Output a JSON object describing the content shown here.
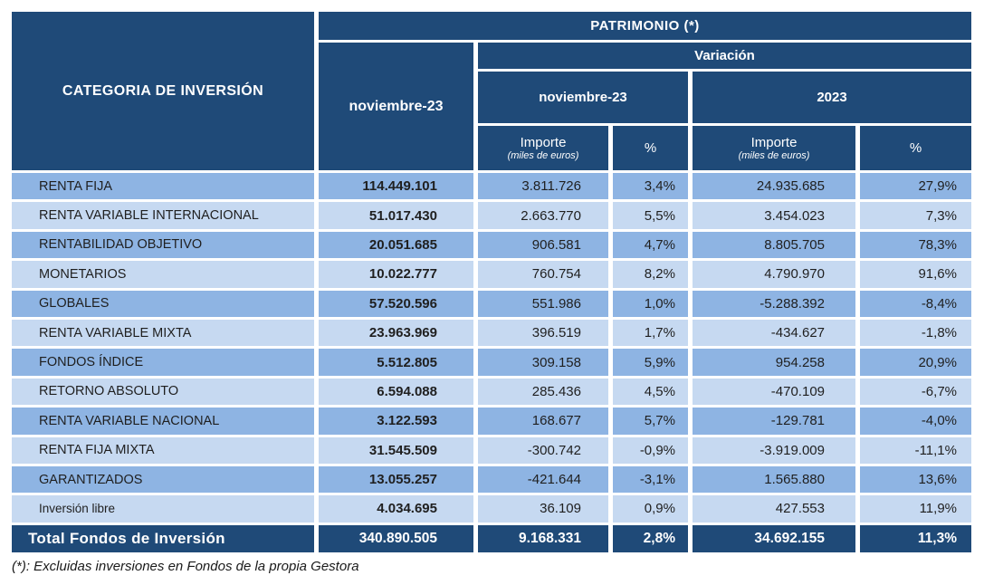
{
  "colors": {
    "header_navy": "#1F4A78",
    "row_medium_blue": "#8EB4E3",
    "row_light_blue": "#C6D9F1",
    "grid_line": "#FFFFFF",
    "text_dark": "#1F1F1F",
    "text_white": "#FFFFFF"
  },
  "table": {
    "header": {
      "category": "CATEGORIA DE INVERSIÓN",
      "patrimonio": "PATRIMONIO (*)",
      "nov23_main": "noviembre-23",
      "variacion": "Variación",
      "nov23_sub": "noviembre-23",
      "year2023": "2023",
      "importe": "Importe",
      "importe_unit": "(miles de euros)",
      "pct": "%"
    },
    "rows": [
      {
        "category": "RENTA FIJA",
        "patrimonio": "114.449.101",
        "var_nov_importe": "3.811.726",
        "var_nov_pct": "3,4%",
        "var_2023_importe": "24.935.685",
        "var_2023_pct": "27,9%"
      },
      {
        "category": "RENTA VARIABLE INTERNACIONAL",
        "patrimonio": "51.017.430",
        "var_nov_importe": "2.663.770",
        "var_nov_pct": "5,5%",
        "var_2023_importe": "3.454.023",
        "var_2023_pct": "7,3%"
      },
      {
        "category": "RENTABILIDAD OBJETIVO",
        "patrimonio": "20.051.685",
        "var_nov_importe": "906.581",
        "var_nov_pct": "4,7%",
        "var_2023_importe": "8.805.705",
        "var_2023_pct": "78,3%"
      },
      {
        "category": "MONETARIOS",
        "patrimonio": "10.022.777",
        "var_nov_importe": "760.754",
        "var_nov_pct": "8,2%",
        "var_2023_importe": "4.790.970",
        "var_2023_pct": "91,6%"
      },
      {
        "category": "GLOBALES",
        "patrimonio": "57.520.596",
        "var_nov_importe": "551.986",
        "var_nov_pct": "1,0%",
        "var_2023_importe": "-5.288.392",
        "var_2023_pct": "-8,4%"
      },
      {
        "category": "RENTA VARIABLE MIXTA",
        "patrimonio": "23.963.969",
        "var_nov_importe": "396.519",
        "var_nov_pct": "1,7%",
        "var_2023_importe": "-434.627",
        "var_2023_pct": "-1,8%"
      },
      {
        "category": "FONDOS ÍNDICE",
        "patrimonio": "5.512.805",
        "var_nov_importe": "309.158",
        "var_nov_pct": "5,9%",
        "var_2023_importe": "954.258",
        "var_2023_pct": "20,9%"
      },
      {
        "category": "RETORNO ABSOLUTO",
        "patrimonio": "6.594.088",
        "var_nov_importe": "285.436",
        "var_nov_pct": "4,5%",
        "var_2023_importe": "-470.109",
        "var_2023_pct": "-6,7%"
      },
      {
        "category": "RENTA VARIABLE NACIONAL",
        "patrimonio": "3.122.593",
        "var_nov_importe": "168.677",
        "var_nov_pct": "5,7%",
        "var_2023_importe": "-129.781",
        "var_2023_pct": "-4,0%"
      },
      {
        "category": "RENTA FIJA MIXTA",
        "patrimonio": "31.545.509",
        "var_nov_importe": "-300.742",
        "var_nov_pct": "-0,9%",
        "var_2023_importe": "-3.919.009",
        "var_2023_pct": "-11,1%"
      },
      {
        "category": "GARANTIZADOS",
        "patrimonio": "13.055.257",
        "var_nov_importe": "-421.644",
        "var_nov_pct": "-3,1%",
        "var_2023_importe": "1.565.880",
        "var_2023_pct": "13,6%"
      },
      {
        "category": "Inversión libre",
        "patrimonio": "4.034.695",
        "var_nov_importe": "36.109",
        "var_nov_pct": "0,9%",
        "var_2023_importe": "427.553",
        "var_2023_pct": "11,9%"
      }
    ],
    "total": {
      "label": "Total Fondos de Inversión",
      "patrimonio": "340.890.505",
      "var_nov_importe": "9.168.331",
      "var_nov_pct": "2,8%",
      "var_2023_importe": "34.692.155",
      "var_2023_pct": "11,3%"
    },
    "footnote": "(*): Excluidas inversiones en Fondos de la propia Gestora"
  }
}
